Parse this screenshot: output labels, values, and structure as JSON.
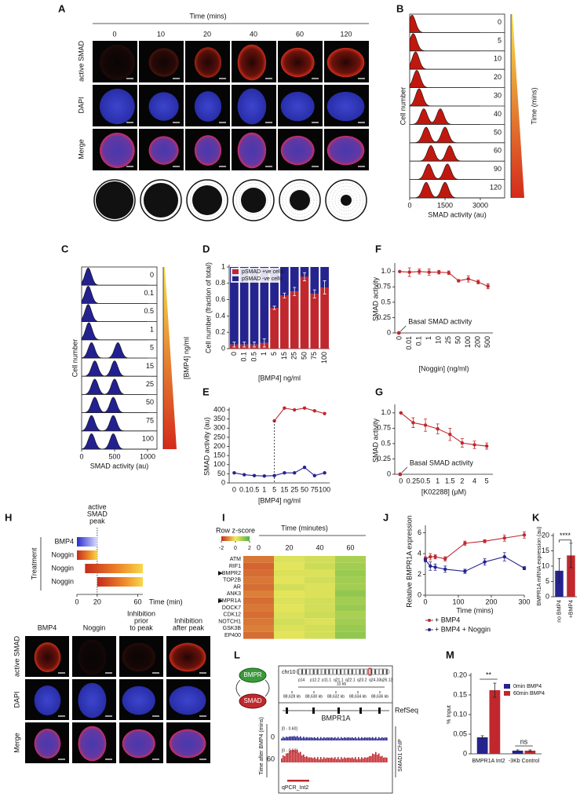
{
  "panel_a": {
    "label": "A",
    "axis_title": "Time (mins)",
    "times": [
      0,
      10,
      20,
      40,
      60,
      120
    ],
    "rows": [
      "active SMAD",
      "DAPI",
      "Merge"
    ]
  },
  "panel_b": {
    "label": "B",
    "ridges": [
      0,
      5,
      10,
      20,
      30,
      40,
      50,
      60,
      90,
      120
    ],
    "modes": [
      [
        100
      ],
      [
        150
      ],
      [
        250
      ],
      [
        300
      ],
      [
        400
      ],
      [
        600,
        1300
      ],
      [
        700,
        1500
      ],
      [
        900,
        1700
      ],
      [
        800,
        1600
      ],
      [
        700,
        1500
      ]
    ],
    "xlim": [
      0,
      3000
    ],
    "xticks": [
      0,
      1500,
      3000
    ],
    "x_label": "SMAD activity (au)",
    "y_label": "Cell number",
    "scale_label": "Time (mins)",
    "color": "#c0180f"
  },
  "panel_c": {
    "label": "C",
    "ridges": [
      0,
      0.1,
      0.5,
      1,
      5,
      15,
      25,
      50,
      75,
      100
    ],
    "modes": [
      [
        100
      ],
      [
        100
      ],
      [
        100
      ],
      [
        110
      ],
      [
        150,
        550
      ],
      [
        200,
        500
      ],
      [
        200,
        500
      ],
      [
        200,
        480
      ],
      [
        150,
        480
      ],
      [
        150,
        480
      ]
    ],
    "xlim": [
      0,
      1000
    ],
    "xticks": [
      0,
      500,
      1000
    ],
    "x_label": "SMAD activity (au)",
    "y_label": "Cell number",
    "scale_label": "[BMP4] ng/ml",
    "color": "#23208f"
  },
  "panel_d": {
    "label": "D"
  },
  "panel_e": {
    "label": "E"
  },
  "panel_f": {
    "label": "F"
  },
  "panel_g": {
    "label": "G"
  },
  "panel_j": {
    "label": "J"
  },
  "panel_k": {
    "label": "K"
  },
  "panel_m": {
    "label": "M"
  },
  "panel_h": {
    "label": "H",
    "peak_label": [
      "active",
      "SMAD",
      "peak"
    ],
    "axis_label": "Treatment",
    "x_label": "Time (min)",
    "xlim": [
      0,
      65
    ],
    "xticks": [
      0,
      20,
      60
    ],
    "peak": 20,
    "bars": [
      {
        "name": "BMP4",
        "start": 0,
        "end": 20
      },
      {
        "name": "Noggin",
        "start": 0,
        "end": 20
      },
      {
        "name": "Noggin",
        "start": 8,
        "end": 65
      },
      {
        "name": "Noggin",
        "start": 20,
        "end": 65
      }
    ],
    "columns": [
      [
        "BMP4"
      ],
      [
        "Noggin"
      ],
      [
        "Inhibition",
        "prior",
        "to peak"
      ],
      [
        "Inhibition",
        "after peak"
      ]
    ],
    "rows": [
      "active SMAD",
      "DAPI",
      "Merge"
    ]
  },
  "panel_i": {
    "label": "I",
    "scale_title": "Row z-score",
    "scale_ticks": [
      -2,
      0,
      2
    ],
    "colors": [
      "#c62a1d",
      "#f4ea5c",
      "#4fb047"
    ],
    "time_label": "Time (minutes)",
    "times": [
      0,
      20,
      40,
      60
    ],
    "genes": [
      "ATM",
      "RIF1",
      "BMPR2",
      "TOP2B",
      "AR",
      "ANK3",
      "BMPR1A",
      "DOCK7",
      "CDK12",
      "NOTCH1",
      "GSK3B",
      "EP400"
    ],
    "values": [
      [
        -1.2,
        0.3,
        0.4,
        0.9
      ],
      [
        -1.4,
        0.2,
        0.5,
        1.0
      ],
      [
        -1.3,
        0.3,
        0.3,
        1.1
      ],
      [
        -1.2,
        0.2,
        0.4,
        1.0
      ],
      [
        -1.3,
        0.4,
        0.3,
        1.0
      ],
      [
        -1.1,
        0.2,
        0.3,
        1.2
      ],
      [
        -1.3,
        0.3,
        0.4,
        1.0
      ],
      [
        -1.2,
        0.2,
        0.4,
        1.1
      ],
      [
        -1.3,
        0.3,
        0.5,
        0.9
      ],
      [
        -1.2,
        0.4,
        0.3,
        1.0
      ],
      [
        -1.1,
        0.3,
        0.4,
        1.1
      ],
      [
        -1.3,
        0.2,
        0.4,
        1.2
      ]
    ],
    "marked": [
      "BMPR2",
      "BMPR1A"
    ]
  },
  "panel_l": {
    "label": "L",
    "cycle": [
      "BMPR",
      "SMAD"
    ],
    "chromosome": "chr10",
    "bands": [
      "p14",
      "p12.2",
      "p11.1",
      "q21.1",
      "q22.1",
      "q23.2",
      "q24.33",
      "q26.13"
    ],
    "scale": "10 kb",
    "coordinates": [
      "88,628 kb",
      "88,630 kb",
      "88,632 kb",
      "88,634 kb",
      "88,636 kb"
    ],
    "track": "RefSeq",
    "gene": "BMPR1A",
    "time_label": "Time after BMP4 (mins)",
    "tracks": [
      {
        "time": 0,
        "range": "[0 - 0.60]"
      },
      {
        "time": 60,
        "range": "[0 - 0.60]"
      }
    ],
    "chip_label": "SMAD1 ChIP",
    "primer": "qPCR_Int2"
  },
  "chart_data": [
    {
      "type": "bar",
      "stacked": true,
      "categories": [
        0,
        0.1,
        0.5,
        1,
        5,
        15,
        25,
        50,
        75,
        100
      ],
      "series": [
        {
          "name": "pSMAD +ve cells",
          "color": "#c0282d",
          "values": [
            0.05,
            0.05,
            0.05,
            0.07,
            0.5,
            0.65,
            0.7,
            0.88,
            0.67,
            0.75
          ],
          "errors": [
            0.03,
            0.03,
            0.03,
            0.05,
            0.02,
            0.03,
            0.05,
            0.05,
            0.05,
            0.08
          ]
        },
        {
          "name": "pSMAD -ve cells",
          "color": "#25238e",
          "values": [
            0.95,
            0.95,
            0.95,
            0.93,
            0.5,
            0.35,
            0.3,
            0.12,
            0.33,
            0.25
          ]
        }
      ],
      "ylim": [
        0,
        1
      ],
      "yticks": [
        0,
        0.2,
        0.4,
        0.6,
        0.8,
        1
      ],
      "y_label": "Cell number (fraction of total)",
      "x_label": "[BMP4] ng/ml",
      "legend": "upper left"
    },
    {
      "type": "line",
      "categories": [
        0,
        0.1,
        0.5,
        1,
        5,
        15,
        25,
        50,
        75,
        100
      ],
      "series": [
        {
          "color": "#c0282d",
          "values": [
            null,
            null,
            null,
            null,
            340,
            410,
            400,
            410,
            395,
            380
          ]
        },
        {
          "color": "#25238e",
          "values": [
            55,
            45,
            40,
            38,
            40,
            55,
            55,
            85,
            40,
            55
          ]
        }
      ],
      "ylim": [
        0,
        400
      ],
      "yticks": [
        0,
        50,
        100,
        150,
        200,
        250,
        300,
        350,
        400
      ],
      "y_label": "SMAD activity (au)",
      "x_label": "[BMP4] ng/ml"
    },
    {
      "type": "line",
      "categories": [
        0,
        0.01,
        0.1,
        1,
        10,
        25,
        50,
        100,
        200,
        500
      ],
      "series": [
        {
          "color": "#c0282d",
          "values": [
            1.0,
            0.99,
            1.0,
            0.99,
            0.99,
            0.98,
            0.85,
            0.88,
            0.83,
            0.76
          ],
          "errors": [
            0,
            0.07,
            0.04,
            0.05,
            0.03,
            0.03,
            0.02,
            0.05,
            0.03,
            0.04
          ]
        }
      ],
      "basal_value": 0,
      "annotation": "Basal SMAD activity",
      "ylim": [
        0,
        1.1
      ],
      "yticks": [
        0,
        0.25,
        0.5,
        0.75,
        {
          "value": 1,
          "label": "1.0"
        }
      ],
      "y_label": "SMAD activity",
      "x_label": "[Noggin] (ng/ml)"
    },
    {
      "type": "line",
      "categories": [
        0,
        0.25,
        0.5,
        1,
        1.5,
        2,
        4,
        5
      ],
      "series": [
        {
          "color": "#c0282d",
          "values": [
            1.0,
            0.84,
            0.8,
            0.74,
            0.65,
            0.51,
            0.48,
            0.46
          ],
          "errors": [
            0,
            0.08,
            0.1,
            0.08,
            0.1,
            0.07,
            0.06,
            0.05
          ]
        }
      ],
      "basal_value": 0,
      "annotation": "Basal SMAD activity",
      "ylim": [
        0,
        1.1
      ],
      "yticks": [
        0,
        0.25,
        0.5,
        0.75,
        {
          "value": 1,
          "label": "1.0"
        }
      ],
      "y_label": "SMAD activity",
      "x_label": "[K02288] (μM)"
    },
    {
      "type": "line",
      "x": [
        0,
        15,
        30,
        60,
        120,
        180,
        240,
        300
      ],
      "series": [
        {
          "name": "+ BMP4",
          "color": "#c0282d",
          "values": [
            3.5,
            3.7,
            3.7,
            3.5,
            5.0,
            5.2,
            5.5,
            5.8
          ],
          "errors": [
            0.2,
            0.3,
            0.2,
            0.2,
            0.2,
            0.15,
            0.3,
            0.3
          ]
        },
        {
          "name": "+ BMP4 + Noggin",
          "color": "#25238e",
          "values": [
            3.4,
            2.8,
            2.7,
            2.5,
            2.3,
            3.2,
            3.7,
            2.6
          ],
          "errors": [
            0.2,
            0.4,
            0.3,
            0.3,
            0.2,
            0.3,
            0.4,
            0.15
          ]
        }
      ],
      "xlim": [
        0,
        300
      ],
      "xticks": [
        0,
        100,
        200,
        300
      ],
      "ylim": [
        0,
        6.5
      ],
      "yticks": [
        0,
        2,
        4,
        6
      ],
      "y_label": "Relative BMPR1A expression",
      "x_label": "Time (mins)",
      "legend": "below"
    },
    {
      "type": "bar",
      "categories": [
        "no BMP4",
        "+BMP4"
      ],
      "values": [
        8.5,
        13.5
      ],
      "errors": [
        4,
        4
      ],
      "colors": [
        "#25238e",
        "#c0282d"
      ],
      "ylim": [
        0,
        20
      ],
      "yticks": [
        0,
        5,
        10,
        15,
        20
      ],
      "y_label": "BMPR1A mRNA expression (au)",
      "annotation": "****"
    },
    {
      "type": "bar",
      "categories": [
        "BMPR1A Int2",
        "-3Kb Control"
      ],
      "series": [
        {
          "name": "0min BMP4",
          "color": "#25238e",
          "values": [
            0.042,
            0.008
          ],
          "errors": [
            0.004,
            0.002
          ]
        },
        {
          "name": "60min BMP4",
          "color": "#c0282d",
          "values": [
            0.162,
            0.008
          ],
          "errors": [
            0.018,
            0.002
          ]
        }
      ],
      "annotations": [
        "**",
        "ns"
      ],
      "ylim": [
        0,
        0.2
      ],
      "yticks": [
        0,
        0.05,
        {
          "value": 0.1,
          "label": "0.10"
        },
        0.15,
        {
          "value": 0.2,
          "label": "0.20"
        }
      ],
      "y_label": "% Input",
      "legend": "upper right"
    }
  ]
}
